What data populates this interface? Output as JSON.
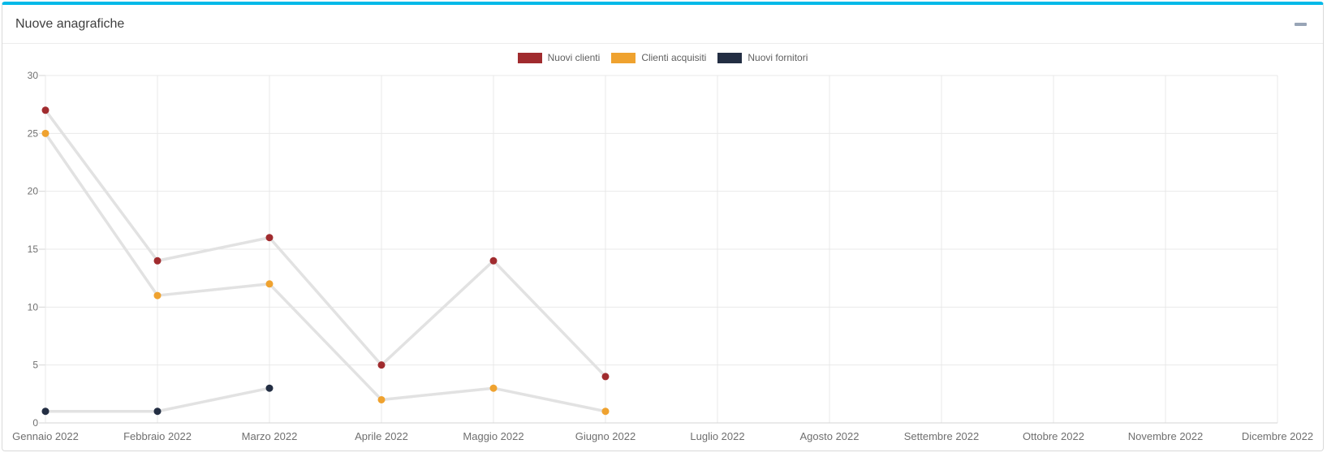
{
  "card": {
    "title": "Nuove anagrafiche",
    "accent_color": "#00b9e8",
    "collapse_icon": "minus"
  },
  "chart_data": {
    "type": "line",
    "title": "Nuove anagrafiche",
    "categories": [
      "Gennaio 2022",
      "Febbraio 2022",
      "Marzo 2022",
      "Aprile 2022",
      "Maggio 2022",
      "Giugno 2022",
      "Luglio 2022",
      "Agosto 2022",
      "Settembre 2022",
      "Ottobre 2022",
      "Novembre 2022",
      "Dicembre 2022"
    ],
    "series": [
      {
        "name": "Nuovi clienti",
        "color": "#a02b2e",
        "values": [
          27,
          14,
          16,
          5,
          14,
          4,
          null,
          null,
          null,
          null,
          null,
          null
        ]
      },
      {
        "name": "Clienti acquisiti",
        "color": "#efa22f",
        "values": [
          25,
          11,
          12,
          2,
          3,
          1,
          null,
          null,
          null,
          null,
          null,
          null
        ]
      },
      {
        "name": "Nuovi fornitori",
        "color": "#232e43",
        "values": [
          1,
          1,
          3,
          null,
          null,
          null,
          null,
          null,
          null,
          null,
          null,
          null
        ]
      }
    ],
    "xlabel": "",
    "ylabel": "",
    "ylim": [
      0,
      30
    ],
    "ytick_step": 5,
    "grid": true,
    "legend_position": "top",
    "line_color": "#e2e2e2",
    "grid_color": "#e9e9e9",
    "axis_color": "#d6d6d6",
    "tick_label_color": "#6f6f6f"
  }
}
